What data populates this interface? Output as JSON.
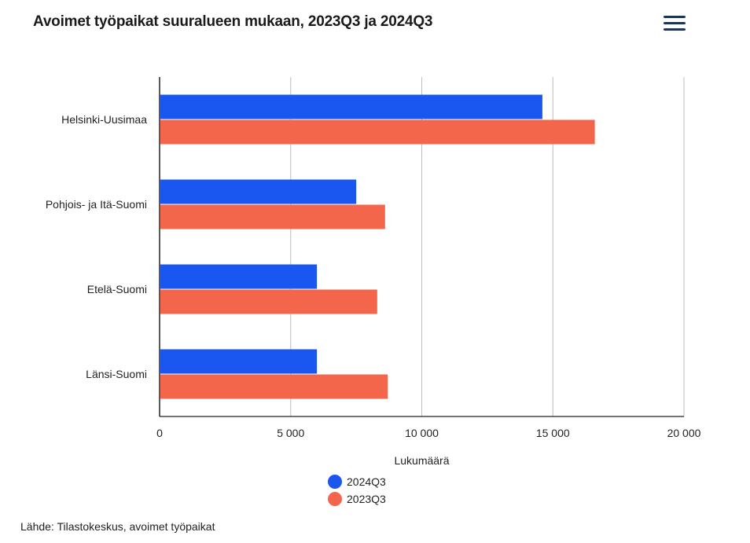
{
  "header": {
    "title": "Avoimet työpaikat suuralueen mukaan, 2023Q3 ja 2024Q3"
  },
  "menu": {
    "icon": "hamburger-menu-icon"
  },
  "chart_data": {
    "type": "bar",
    "orientation": "horizontal",
    "categories": [
      "Helsinki-Uusimaa",
      "Pohjois- ja Itä-Suomi",
      "Etelä-Suomi",
      "Länsi-Suomi"
    ],
    "series": [
      {
        "name": "2024Q3",
        "color": "#1a56f0",
        "values": [
          14600,
          7500,
          6000,
          6000
        ]
      },
      {
        "name": "2023Q3",
        "color": "#f4664c",
        "values": [
          16600,
          8600,
          8300,
          8700
        ]
      }
    ],
    "xlabel": "Lukumäärä",
    "ylabel": "",
    "xlim": [
      0,
      20000
    ],
    "ticks": [
      0,
      5000,
      10000,
      15000,
      20000
    ],
    "tick_labels": [
      "0",
      "5 000",
      "10 000",
      "15 000",
      "20 000"
    ],
    "grid": true,
    "legend_position": "bottom-center"
  },
  "source": "Lähde: Tilastokeskus, avoimet työpaikat"
}
